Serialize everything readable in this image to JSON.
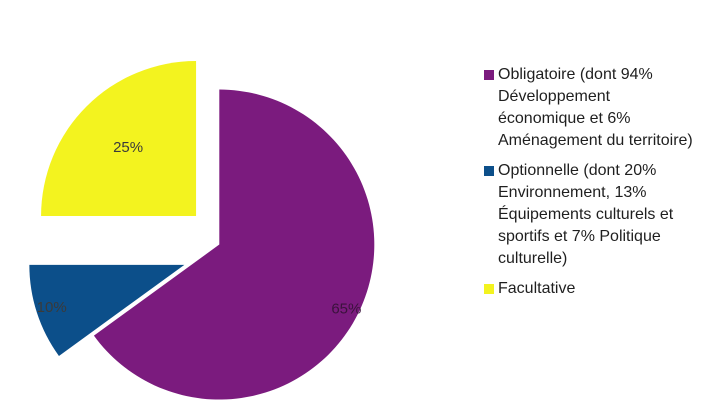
{
  "chart_data": {
    "type": "pie",
    "title": "",
    "exploded": true,
    "slices": [
      {
        "label": "Obligatoire (dont 94% Développement économique et 6% Aménagement du territoire)",
        "value": 65,
        "value_label": "65%",
        "color": "#7b1b7e"
      },
      {
        "label": "Optionnelle (dont 20% Environnement, 13% Équipements culturels et sportifs et 7% Politique culturelle)",
        "value": 10,
        "value_label": "10%",
        "color": "#0c4f8a"
      },
      {
        "label": "Facultative",
        "value": 25,
        "value_label": "25%",
        "color": "#f3f31f"
      }
    ],
    "legend_position": "right"
  }
}
